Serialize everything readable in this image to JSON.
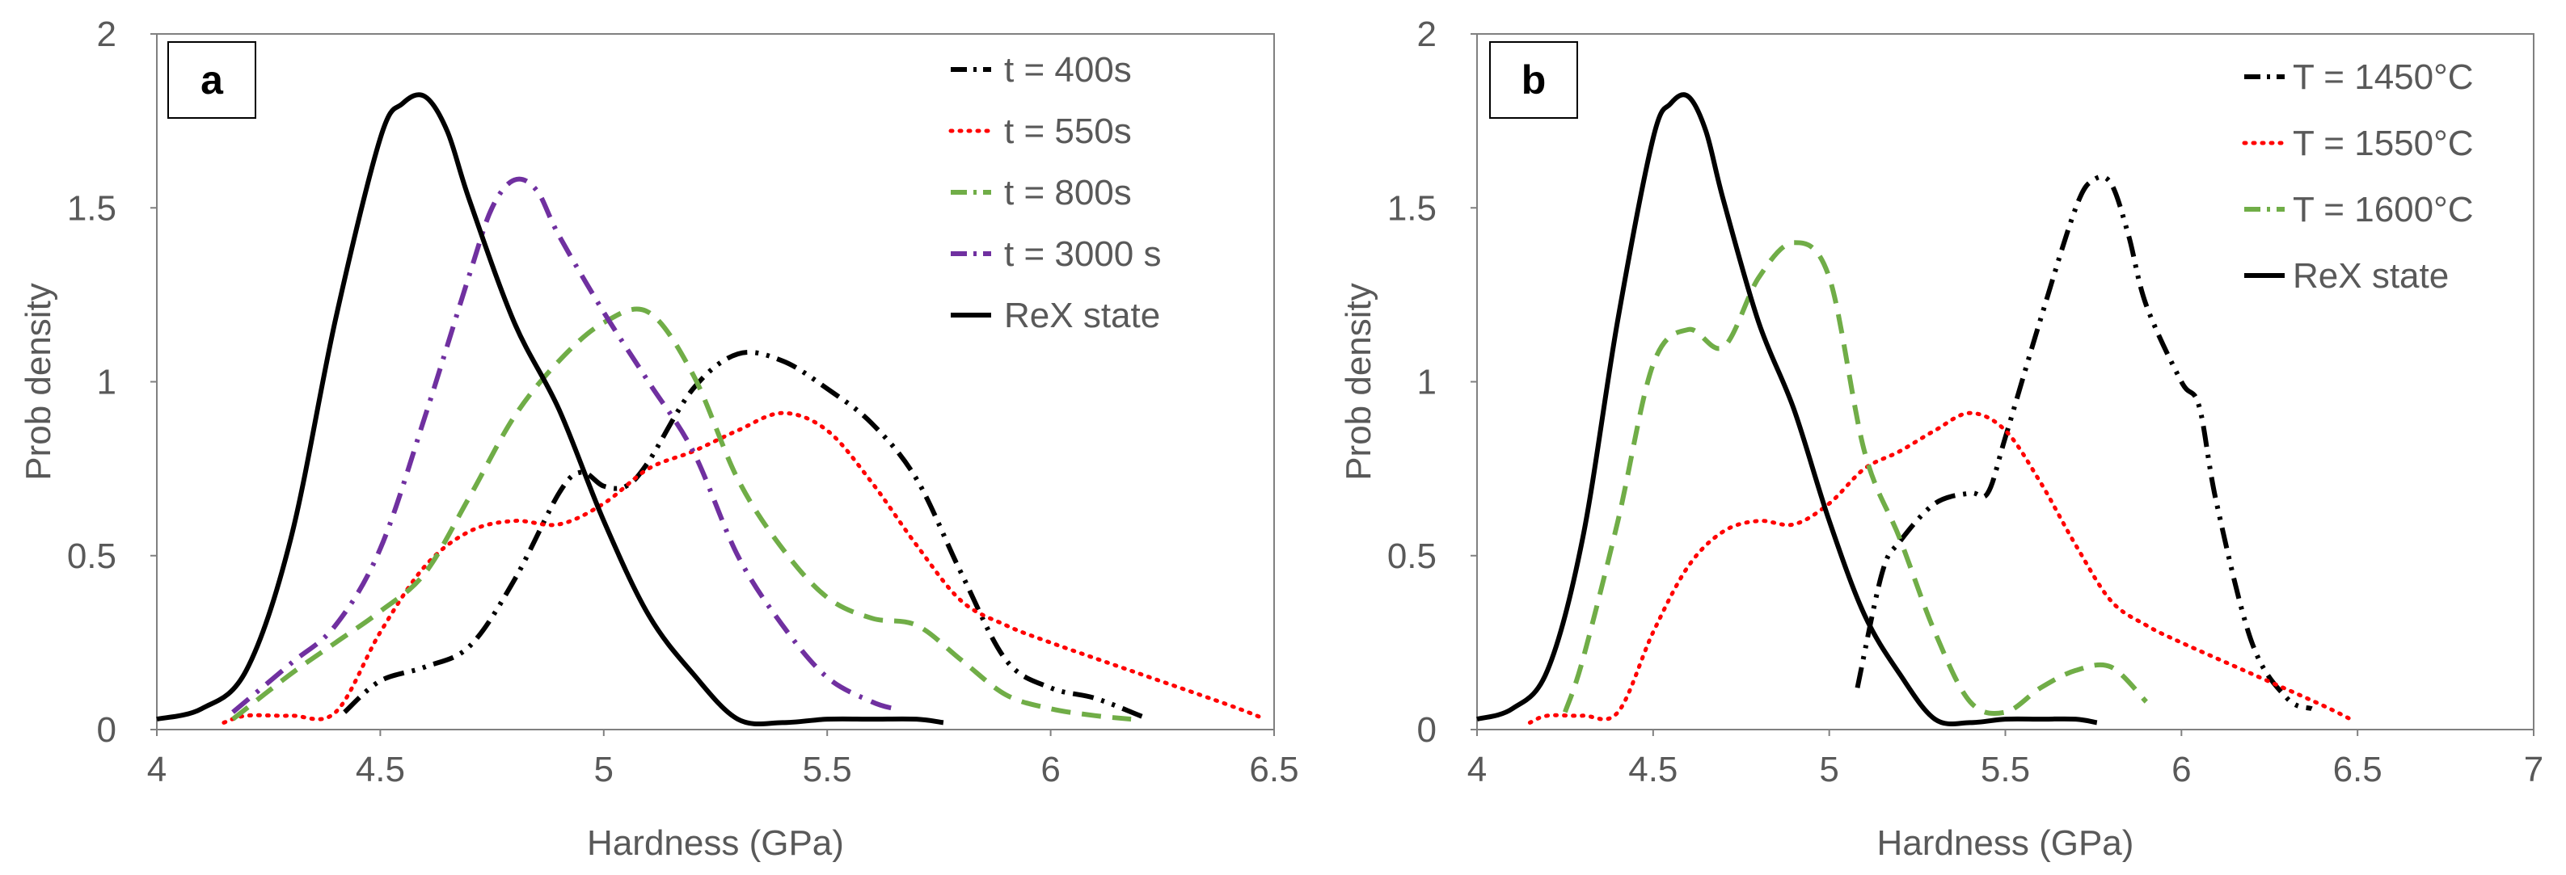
{
  "figure": {
    "panels": [
      "a",
      "b"
    ]
  },
  "chart_data": [
    {
      "type": "line",
      "panel_label": "a",
      "xlabel": "Hardness (GPa)",
      "ylabel": "Prob density",
      "xlim": [
        4,
        6.5
      ],
      "ylim": [
        0,
        2
      ],
      "xticks": [
        "4",
        "4.5",
        "5",
        "5.5",
        "6",
        "6.5"
      ],
      "yticks": [
        "0",
        "0.5",
        "1",
        "1.5",
        "2"
      ],
      "grid": false,
      "legend_position": "top-right",
      "series": [
        {
          "name": "t = 400s",
          "color": "#000000",
          "style": "dash-dot-dot",
          "x": [
            4.42,
            4.5,
            4.6,
            4.7,
            4.8,
            4.9,
            4.95,
            5.0,
            5.05,
            5.1,
            5.2,
            5.3,
            5.4,
            5.5,
            5.6,
            5.7,
            5.8,
            5.9,
            6.0,
            6.1,
            6.2,
            6.22
          ],
          "y": [
            0.05,
            0.14,
            0.18,
            0.24,
            0.43,
            0.68,
            0.74,
            0.7,
            0.7,
            0.77,
            0.98,
            1.08,
            1.06,
            0.98,
            0.88,
            0.72,
            0.45,
            0.2,
            0.12,
            0.09,
            0.04,
            0.03
          ]
        },
        {
          "name": "t = 550s",
          "color": "#ff0000",
          "style": "dotted",
          "x": [
            4.15,
            4.2,
            4.3,
            4.4,
            4.5,
            4.6,
            4.7,
            4.8,
            4.9,
            5.0,
            5.1,
            5.2,
            5.3,
            5.4,
            5.5,
            5.6,
            5.7,
            5.8,
            5.9,
            6.0,
            6.2,
            6.4,
            6.48
          ],
          "y": [
            0.02,
            0.04,
            0.04,
            0.05,
            0.28,
            0.47,
            0.57,
            0.6,
            0.59,
            0.65,
            0.75,
            0.8,
            0.86,
            0.91,
            0.86,
            0.71,
            0.53,
            0.37,
            0.3,
            0.25,
            0.16,
            0.07,
            0.03
          ]
        },
        {
          "name": "t = 800s",
          "color": "#70ad47",
          "style": "dashed",
          "x": [
            4.17,
            4.3,
            4.4,
            4.5,
            4.6,
            4.7,
            4.8,
            4.9,
            5.0,
            5.1,
            5.2,
            5.3,
            5.4,
            5.5,
            5.6,
            5.7,
            5.8,
            5.9,
            6.0,
            6.1,
            6.18
          ],
          "y": [
            0.03,
            0.16,
            0.25,
            0.34,
            0.45,
            0.67,
            0.9,
            1.06,
            1.17,
            1.2,
            1.02,
            0.72,
            0.52,
            0.38,
            0.32,
            0.3,
            0.2,
            0.1,
            0.06,
            0.04,
            0.03
          ]
        },
        {
          "name": "t = 3000 s",
          "color": "#7030a0",
          "style": "dash-dot",
          "x": [
            4.17,
            4.3,
            4.4,
            4.5,
            4.6,
            4.7,
            4.75,
            4.8,
            4.85,
            4.9,
            5.0,
            5.1,
            5.2,
            5.3,
            5.4,
            5.5,
            5.6,
            5.65
          ],
          "y": [
            0.05,
            0.19,
            0.3,
            0.52,
            0.9,
            1.31,
            1.5,
            1.58,
            1.55,
            1.42,
            1.2,
            1.0,
            0.8,
            0.5,
            0.3,
            0.15,
            0.08,
            0.06
          ]
        },
        {
          "name": "ReX state",
          "color": "#000000",
          "style": "solid",
          "x": [
            4.0,
            4.1,
            4.2,
            4.3,
            4.4,
            4.5,
            4.55,
            4.6,
            4.65,
            4.7,
            4.8,
            4.9,
            5.0,
            5.1,
            5.2,
            5.3,
            5.4,
            5.5,
            5.6,
            5.7,
            5.76
          ],
          "y": [
            0.03,
            0.06,
            0.17,
            0.55,
            1.18,
            1.7,
            1.8,
            1.82,
            1.72,
            1.52,
            1.17,
            0.92,
            0.6,
            0.33,
            0.16,
            0.03,
            0.02,
            0.03,
            0.03,
            0.03,
            0.02
          ]
        }
      ]
    },
    {
      "type": "line",
      "panel_label": "b",
      "xlabel": "Hardness (GPa)",
      "ylabel": "Prob density",
      "xlim": [
        4,
        7
      ],
      "ylim": [
        0,
        2
      ],
      "xticks": [
        "4",
        "4.5",
        "5",
        "5.5",
        "6",
        "6.5",
        "7"
      ],
      "yticks": [
        "0",
        "0.5",
        "1",
        "1.5",
        "2"
      ],
      "grid": false,
      "legend_position": "top-right",
      "series": [
        {
          "name": "T = 1450°C",
          "color": "#000000",
          "style": "dash-dot-dot",
          "x": [
            5.08,
            5.15,
            5.2,
            5.3,
            5.4,
            5.45,
            5.5,
            5.6,
            5.7,
            5.75,
            5.8,
            5.85,
            5.9,
            6.0,
            6.05,
            6.1,
            6.2,
            6.3,
            6.37
          ],
          "y": [
            0.12,
            0.45,
            0.54,
            0.65,
            0.68,
            0.68,
            0.84,
            1.18,
            1.5,
            1.58,
            1.57,
            1.42,
            1.22,
            1.0,
            0.93,
            0.65,
            0.25,
            0.09,
            0.06
          ]
        },
        {
          "name": "T = 1550°C",
          "color": "#ff0000",
          "style": "dotted",
          "x": [
            4.15,
            4.2,
            4.3,
            4.4,
            4.5,
            4.6,
            4.7,
            4.8,
            4.9,
            5.0,
            5.1,
            5.2,
            5.3,
            5.4,
            5.5,
            5.6,
            5.7,
            5.8,
            5.9,
            6.0,
            6.2,
            6.4,
            6.48
          ],
          "y": [
            0.02,
            0.04,
            0.04,
            0.05,
            0.28,
            0.47,
            0.57,
            0.6,
            0.59,
            0.65,
            0.75,
            0.8,
            0.86,
            0.91,
            0.86,
            0.71,
            0.53,
            0.37,
            0.3,
            0.25,
            0.16,
            0.07,
            0.03
          ]
        },
        {
          "name": "T = 1600°C",
          "color": "#70ad47",
          "style": "dashed",
          "x": [
            4.25,
            4.3,
            4.4,
            4.5,
            4.6,
            4.7,
            4.8,
            4.9,
            5.0,
            5.1,
            5.2,
            5.3,
            5.4,
            5.5,
            5.6,
            5.7,
            5.8,
            5.9
          ],
          "y": [
            0.05,
            0.2,
            0.6,
            1.05,
            1.15,
            1.1,
            1.3,
            1.4,
            1.3,
            0.8,
            0.55,
            0.28,
            0.08,
            0.05,
            0.12,
            0.17,
            0.18,
            0.08
          ]
        },
        {
          "name": "ReX state",
          "color": "#000000",
          "style": "solid",
          "x": [
            4.0,
            4.1,
            4.2,
            4.3,
            4.4,
            4.5,
            4.55,
            4.6,
            4.65,
            4.7,
            4.8,
            4.9,
            5.0,
            5.1,
            5.2,
            5.3,
            5.4,
            5.5,
            5.6,
            5.7,
            5.76
          ],
          "y": [
            0.03,
            0.06,
            0.17,
            0.55,
            1.18,
            1.7,
            1.8,
            1.82,
            1.72,
            1.52,
            1.17,
            0.92,
            0.6,
            0.33,
            0.16,
            0.03,
            0.02,
            0.03,
            0.03,
            0.03,
            0.02
          ]
        }
      ]
    }
  ]
}
